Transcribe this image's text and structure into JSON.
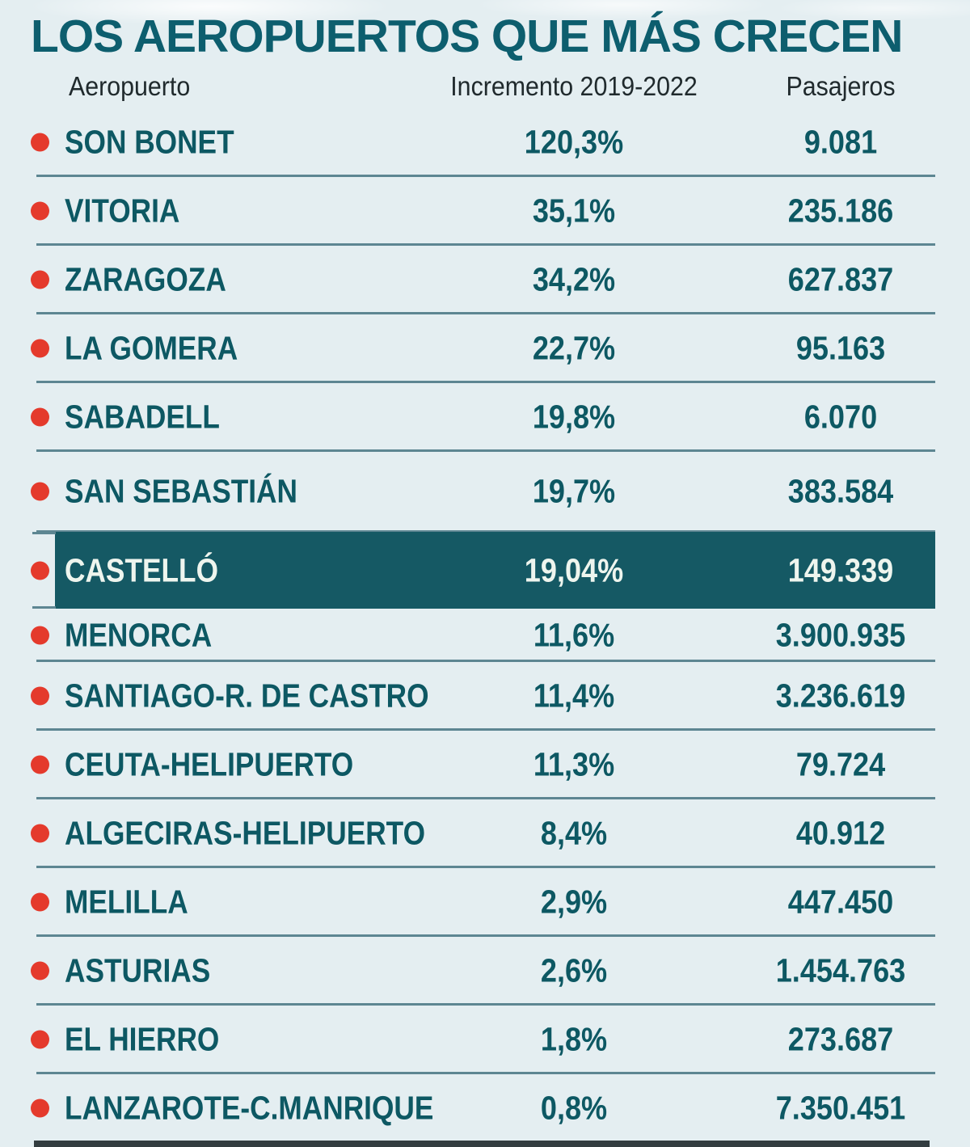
{
  "chart_data": {
    "type": "table",
    "title": "LOS AEROPUERTOS QUE MÁS CRECEN",
    "columns": [
      "Aeropuerto",
      "Incremento 2019-2022",
      "Pasajeros"
    ],
    "highlighted_row": "CASTELLÓ",
    "rows": [
      {
        "airport": "SON BONET",
        "increment": "120,3%",
        "increment_pct": 120.3,
        "passengers": "9.081",
        "passengers_n": 9081
      },
      {
        "airport": "VITORIA",
        "increment": "35,1%",
        "increment_pct": 35.1,
        "passengers": "235.186",
        "passengers_n": 235186
      },
      {
        "airport": "ZARAGOZA",
        "increment": "34,2%",
        "increment_pct": 34.2,
        "passengers": "627.837",
        "passengers_n": 627837
      },
      {
        "airport": "LA GOMERA",
        "increment": "22,7%",
        "increment_pct": 22.7,
        "passengers": "95.163",
        "passengers_n": 95163
      },
      {
        "airport": "SABADELL",
        "increment": "19,8%",
        "increment_pct": 19.8,
        "passengers": "6.070",
        "passengers_n": 6070
      },
      {
        "airport": "SAN SEBASTIÁN",
        "increment": "19,7%",
        "increment_pct": 19.7,
        "passengers": "383.584",
        "passengers_n": 383584
      },
      {
        "airport": "CASTELLÓ",
        "increment": "19,04%",
        "increment_pct": 19.04,
        "passengers": "149.339",
        "passengers_n": 149339
      },
      {
        "airport": "MENORCA",
        "increment": "11,6%",
        "increment_pct": 11.6,
        "passengers": "3.900.935",
        "passengers_n": 3900935
      },
      {
        "airport": "SANTIAGO-R. DE CASTRO",
        "increment": "11,4%",
        "increment_pct": 11.4,
        "passengers": "3.236.619",
        "passengers_n": 3236619
      },
      {
        "airport": "CEUTA-HELIPUERTO",
        "increment": "11,3%",
        "increment_pct": 11.3,
        "passengers": "79.724",
        "passengers_n": 79724
      },
      {
        "airport": "ALGECIRAS-HELIPUERTO",
        "increment": "8,4%",
        "increment_pct": 8.4,
        "passengers": "40.912",
        "passengers_n": 40912
      },
      {
        "airport": "MELILLA",
        "increment": "2,9%",
        "increment_pct": 2.9,
        "passengers": "447.450",
        "passengers_n": 447450
      },
      {
        "airport": "ASTURIAS",
        "increment": "2,6%",
        "increment_pct": 2.6,
        "passengers": "1.454.763",
        "passengers_n": 1454763
      },
      {
        "airport": "EL HIERRO",
        "increment": "1,8%",
        "increment_pct": 1.8,
        "passengers": "273.687",
        "passengers_n": 273687
      },
      {
        "airport": "LANZAROTE-C.MANRIQUE",
        "increment": "0,8%",
        "increment_pct": 0.8,
        "passengers": "7.350.451",
        "passengers_n": 7350451
      }
    ]
  },
  "colors": {
    "background": "#e4eef1",
    "title_teal": "#0d5e6e",
    "row_text_teal": "#0d5863",
    "header_text": "#202a2d",
    "bullet_red": "#e43a2c",
    "separator": "#5d8692",
    "highlight_bg": "#155964",
    "highlight_text": "#eef5ee",
    "bottom_bar": "#333d40"
  }
}
